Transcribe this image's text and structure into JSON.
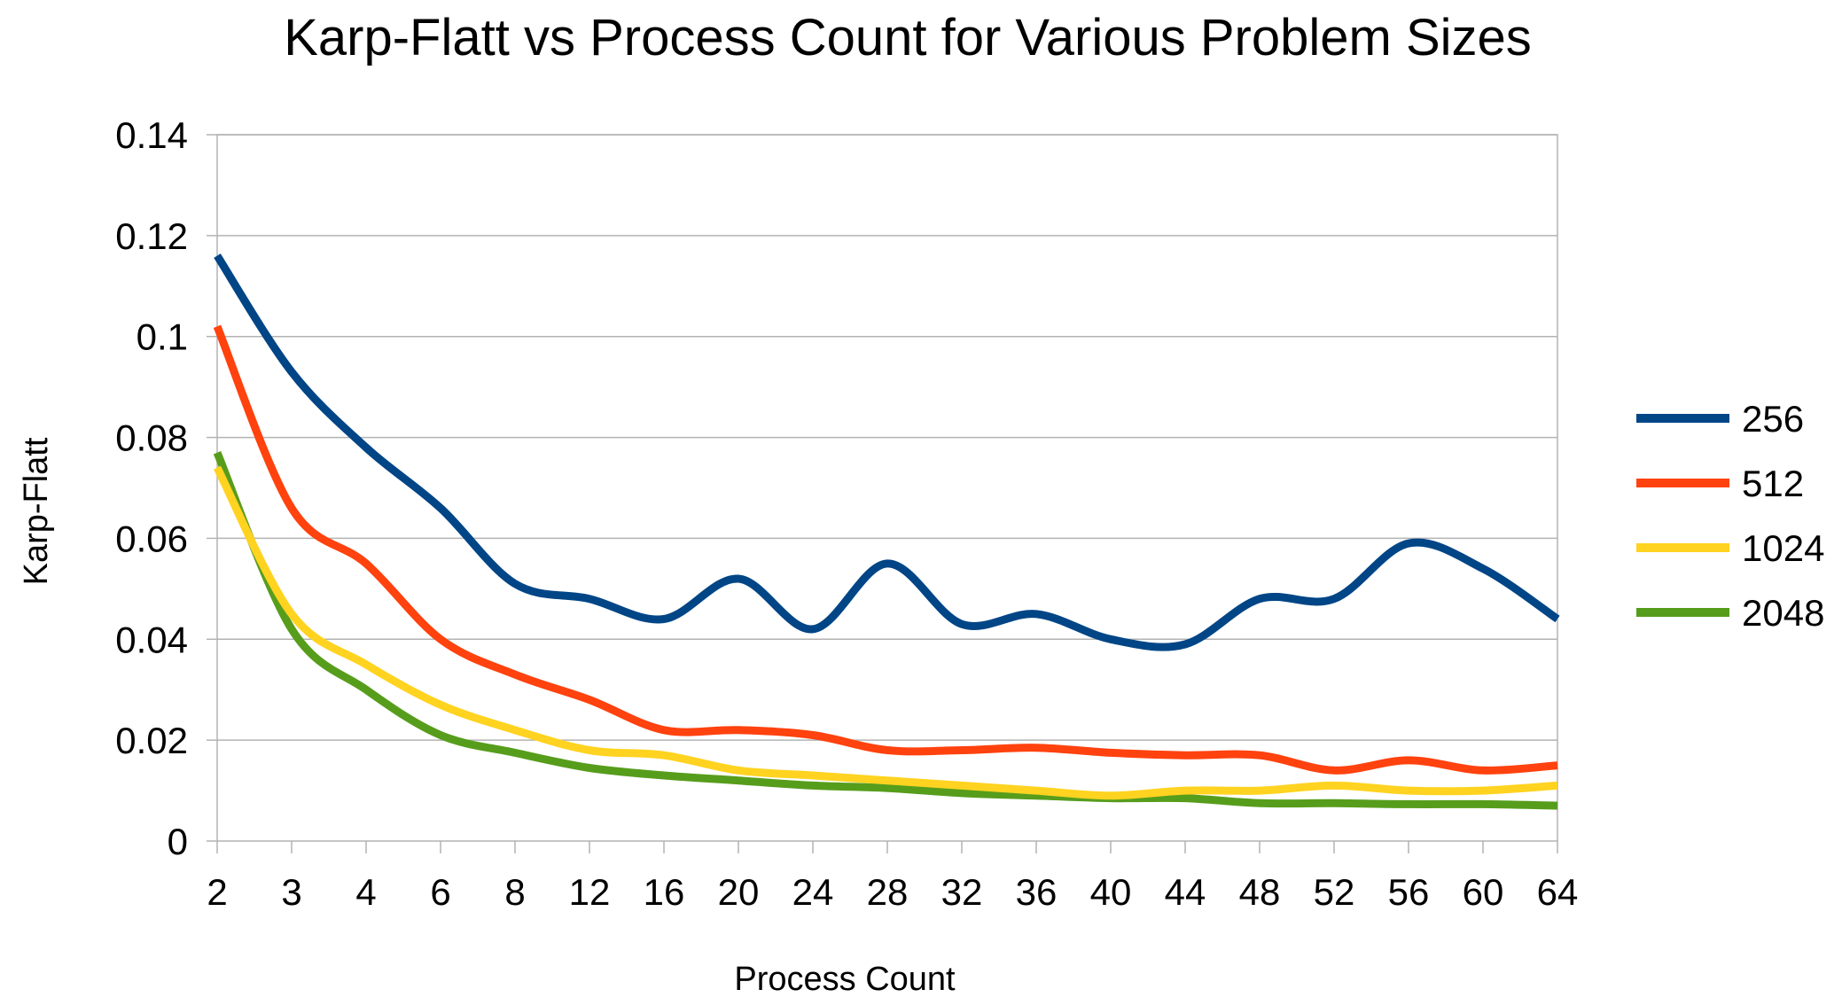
{
  "chart_data": {
    "type": "line",
    "title": "Karp-Flatt vs Process Count for Various Problem Sizes",
    "xlabel": "Process Count",
    "ylabel": "Karp-Flatt",
    "categories": [
      "2",
      "3",
      "4",
      "6",
      "8",
      "12",
      "16",
      "20",
      "24",
      "28",
      "32",
      "36",
      "40",
      "44",
      "48",
      "52",
      "56",
      "60",
      "64"
    ],
    "ylim": [
      0,
      0.14
    ],
    "yticks": [
      "0",
      "0.02",
      "0.04",
      "0.06",
      "0.08",
      "0.1",
      "0.12",
      "0.14"
    ],
    "grid": true,
    "legend_position": "right",
    "series": [
      {
        "name": "256",
        "color": "#004586",
        "values": [
          0.116,
          0.093,
          0.078,
          0.066,
          0.051,
          0.048,
          0.044,
          0.052,
          0.042,
          0.055,
          0.043,
          0.045,
          0.04,
          0.039,
          0.048,
          0.048,
          0.059,
          0.054,
          0.044
        ]
      },
      {
        "name": "512",
        "color": "#ff420e",
        "values": [
          0.102,
          0.066,
          0.055,
          0.04,
          0.033,
          0.028,
          0.022,
          0.022,
          0.021,
          0.018,
          0.018,
          0.0185,
          0.0175,
          0.017,
          0.017,
          0.014,
          0.016,
          0.014,
          0.015
        ]
      },
      {
        "name": "1024",
        "color": "#ffd320",
        "values": [
          0.074,
          0.045,
          0.035,
          0.027,
          0.022,
          0.018,
          0.017,
          0.014,
          0.013,
          0.012,
          0.011,
          0.01,
          0.009,
          0.01,
          0.01,
          0.011,
          0.01,
          0.01,
          0.011
        ]
      },
      {
        "name": "2048",
        "color": "#579d1c",
        "values": [
          0.077,
          0.042,
          0.03,
          0.021,
          0.0175,
          0.0145,
          0.013,
          0.012,
          0.011,
          0.0105,
          0.0095,
          0.009,
          0.0085,
          0.0085,
          0.0075,
          0.0075,
          0.0073,
          0.0073,
          0.007
        ]
      }
    ]
  }
}
